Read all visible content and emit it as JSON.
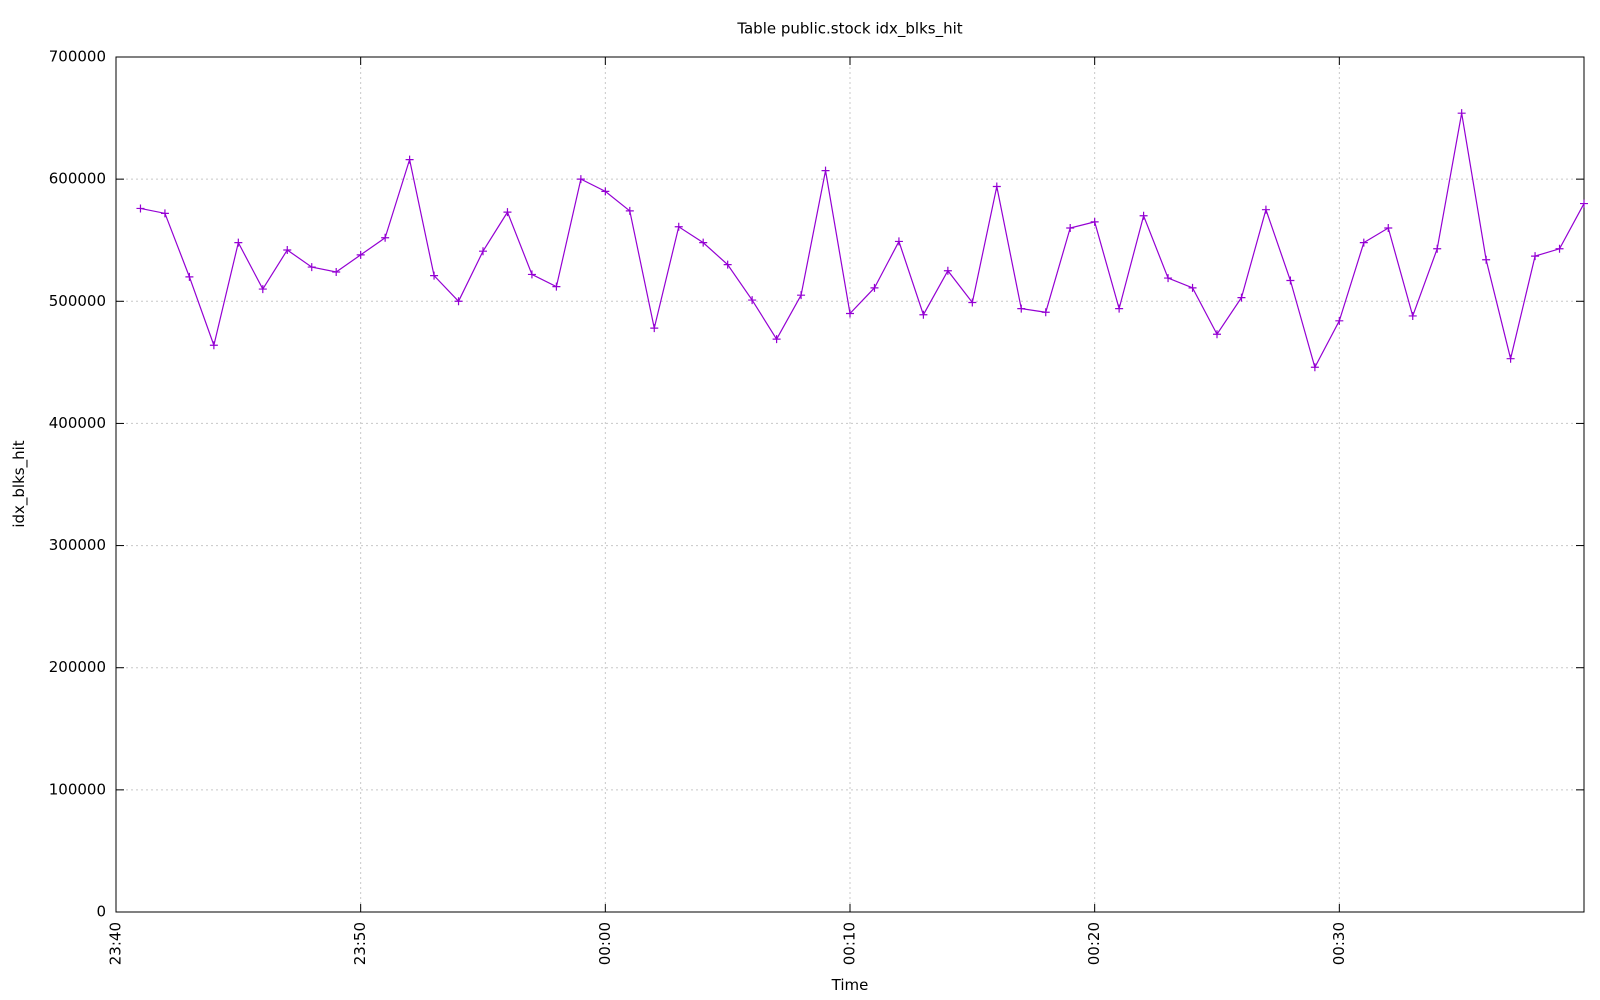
{
  "chart_data": {
    "type": "line",
    "title": "Table public.stock idx_blks_hit",
    "xlabel": "Time",
    "ylabel": "idx_blks_hit",
    "x": [
      "23:41",
      "23:42",
      "23:43",
      "23:44",
      "23:45",
      "23:46",
      "23:47",
      "23:48",
      "23:49",
      "23:50",
      "23:51",
      "23:52",
      "23:53",
      "23:54",
      "23:55",
      "23:56",
      "23:57",
      "23:58",
      "23:59",
      "00:00",
      "00:01",
      "00:02",
      "00:03",
      "00:04",
      "00:05",
      "00:06",
      "00:07",
      "00:08",
      "00:09",
      "00:10",
      "00:11",
      "00:12",
      "00:13",
      "00:14",
      "00:15",
      "00:16",
      "00:17",
      "00:18",
      "00:19",
      "00:20",
      "00:21",
      "00:22",
      "00:23",
      "00:24",
      "00:25",
      "00:26",
      "00:27",
      "00:28",
      "00:29",
      "00:30",
      "00:31",
      "00:32",
      "00:33",
      "00:34",
      "00:35",
      "00:36",
      "00:37",
      "00:38",
      "00:39",
      "00:40"
    ],
    "values": [
      576000,
      572000,
      520000,
      464000,
      548000,
      510000,
      542000,
      528000,
      524000,
      538000,
      552000,
      616000,
      521000,
      500000,
      541000,
      573000,
      522000,
      512000,
      600000,
      590000,
      574000,
      478000,
      561000,
      548000,
      530000,
      501000,
      469000,
      505000,
      607000,
      490000,
      511000,
      549000,
      489000,
      525000,
      499000,
      594000,
      494000,
      491000,
      560000,
      565000,
      494000,
      570000,
      519000,
      511000,
      473000,
      503000,
      575000,
      517000,
      446000,
      484000,
      548000,
      560000,
      488000,
      543000,
      654000,
      534000,
      453000,
      537000,
      543000,
      580000
    ],
    "color": "#9400d3",
    "xlim": [
      "23:40",
      "00:40"
    ],
    "xticks": [
      "23:40",
      "23:50",
      "00:00",
      "00:10",
      "00:20",
      "00:30"
    ],
    "ylim": [
      0,
      700000
    ],
    "yticks": [
      0,
      100000,
      200000,
      300000,
      400000,
      500000,
      600000,
      700000
    ],
    "grid": true
  }
}
